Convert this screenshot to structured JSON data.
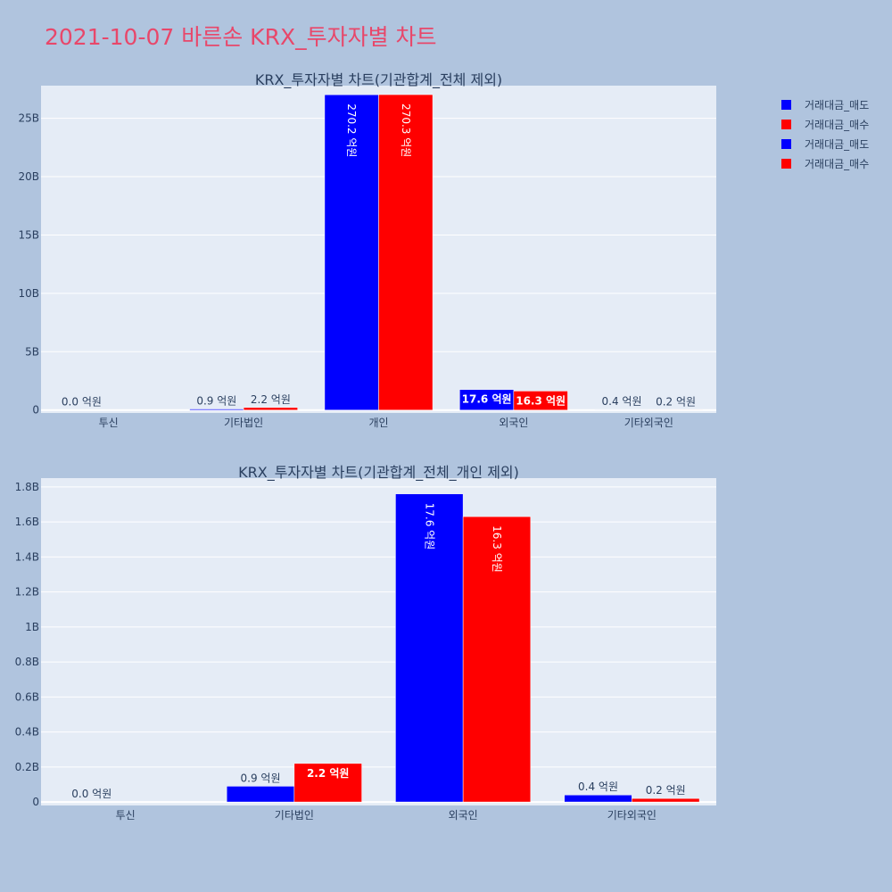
{
  "page": {
    "title": "2021-10-07 바른손 KRX_투자자별 차트"
  },
  "colors": {
    "background": "#b0c4de",
    "plot_bg": "#e5ecf6",
    "sell": "#0000ff",
    "buy": "#ff0000",
    "title": "#e8476a"
  },
  "legend": [
    {
      "label": "거래대금_매도",
      "color": "#0000ff"
    },
    {
      "label": "거래대금_매수",
      "color": "#ff0000"
    },
    {
      "label": "거래대금_매도",
      "color": "#0000ff"
    },
    {
      "label": "거래대금_매수",
      "color": "#ff0000"
    }
  ],
  "chart_data": [
    {
      "type": "bar",
      "title": "KRX_투자자별 차트(기관합계_전체 제외)",
      "categories": [
        "투신",
        "기타법인",
        "개인",
        "외국인",
        "기타외국인"
      ],
      "ylim": [
        -0.25,
        27.8
      ],
      "yticks": [
        0,
        5,
        10,
        15,
        20,
        25
      ],
      "ytick_labels": [
        "0",
        "5B",
        "10B",
        "15B",
        "20B",
        "25B"
      ],
      "series": [
        {
          "name": "거래대금_매도",
          "color": "#0000ff",
          "values": [
            0.0,
            0.09,
            27.02,
            1.76,
            0.04
          ],
          "labels": [
            "0.0 억원",
            "0.9 억원",
            "270.2 억원",
            "17.6 억원",
            "0.4 억원"
          ]
        },
        {
          "name": "거래대금_매수",
          "color": "#ff0000",
          "values": [
            0.0,
            0.22,
            27.03,
            1.63,
            0.02
          ],
          "labels": [
            "",
            "2.2 억원",
            "270.3 억원",
            "16.3 억원",
            "0.2 억원"
          ]
        }
      ]
    },
    {
      "type": "bar",
      "title": "KRX_투자자별 차트(기관합계_전체_개인 제외)",
      "categories": [
        "투신",
        "기타법인",
        "외국인",
        "기타외국인"
      ],
      "ylim": [
        -0.02,
        1.85
      ],
      "yticks": [
        0,
        0.2,
        0.4,
        0.6,
        0.8,
        1,
        1.2,
        1.4,
        1.6,
        1.8
      ],
      "ytick_labels": [
        "0",
        "0.2B",
        "0.4B",
        "0.6B",
        "0.8B",
        "1B",
        "1.2B",
        "1.4B",
        "1.6B",
        "1.8B"
      ],
      "series": [
        {
          "name": "거래대금_매도",
          "color": "#0000ff",
          "values": [
            0.0,
            0.09,
            1.76,
            0.04
          ],
          "labels": [
            "0.0 억원",
            "0.9 억원",
            "17.6 억원",
            "0.4 억원"
          ]
        },
        {
          "name": "거래대금_매수",
          "color": "#ff0000",
          "values": [
            0.0,
            0.22,
            1.63,
            0.02
          ],
          "labels": [
            "",
            "2.2 억원",
            "16.3 억원",
            "0.2 억원"
          ]
        }
      ]
    }
  ]
}
